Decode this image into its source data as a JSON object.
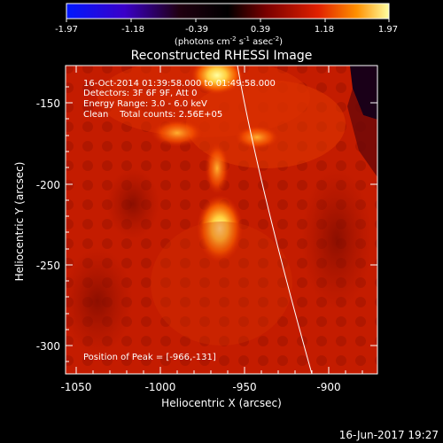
{
  "colorbar": {
    "ticks": [
      "-1.97",
      "-1.18",
      "-0.39",
      "0.39",
      "1.18",
      "1.97"
    ],
    "unit_text": "(photons cm",
    "unit_exp1": "-2",
    "unit_mid": " s",
    "unit_exp2": "-1",
    "unit_tail": " asec",
    "unit_exp3": "-2",
    "unit_close": ")"
  },
  "title": "Reconstructed RHESSI Image",
  "info": {
    "line1": "16-Oct-2014 01:39:58.000 to 01:49:58.000",
    "line2": "Detectors: 3F 6F 9F, Att 0",
    "line3": "Energy Range: 3.0 - 6.0 keV",
    "line4": "Clean    Total counts: 2.56E+05"
  },
  "peak_text": "Position of Peak = [-966,-131]",
  "axes": {
    "xlabel": "Heliocentric X (arcsec)",
    "ylabel": "Heliocentric Y (arcsec)",
    "xticks": [
      "-1050",
      "-1000",
      "-950",
      "-900"
    ],
    "yticks": [
      "-150",
      "-200",
      "-250",
      "-300"
    ]
  },
  "footer_date": "16-Jun-2017 19:27",
  "colors": {
    "background": "#000000",
    "map_base": "#c81e00",
    "map_bright": "#fff080",
    "limb_line": "#ffffff"
  }
}
